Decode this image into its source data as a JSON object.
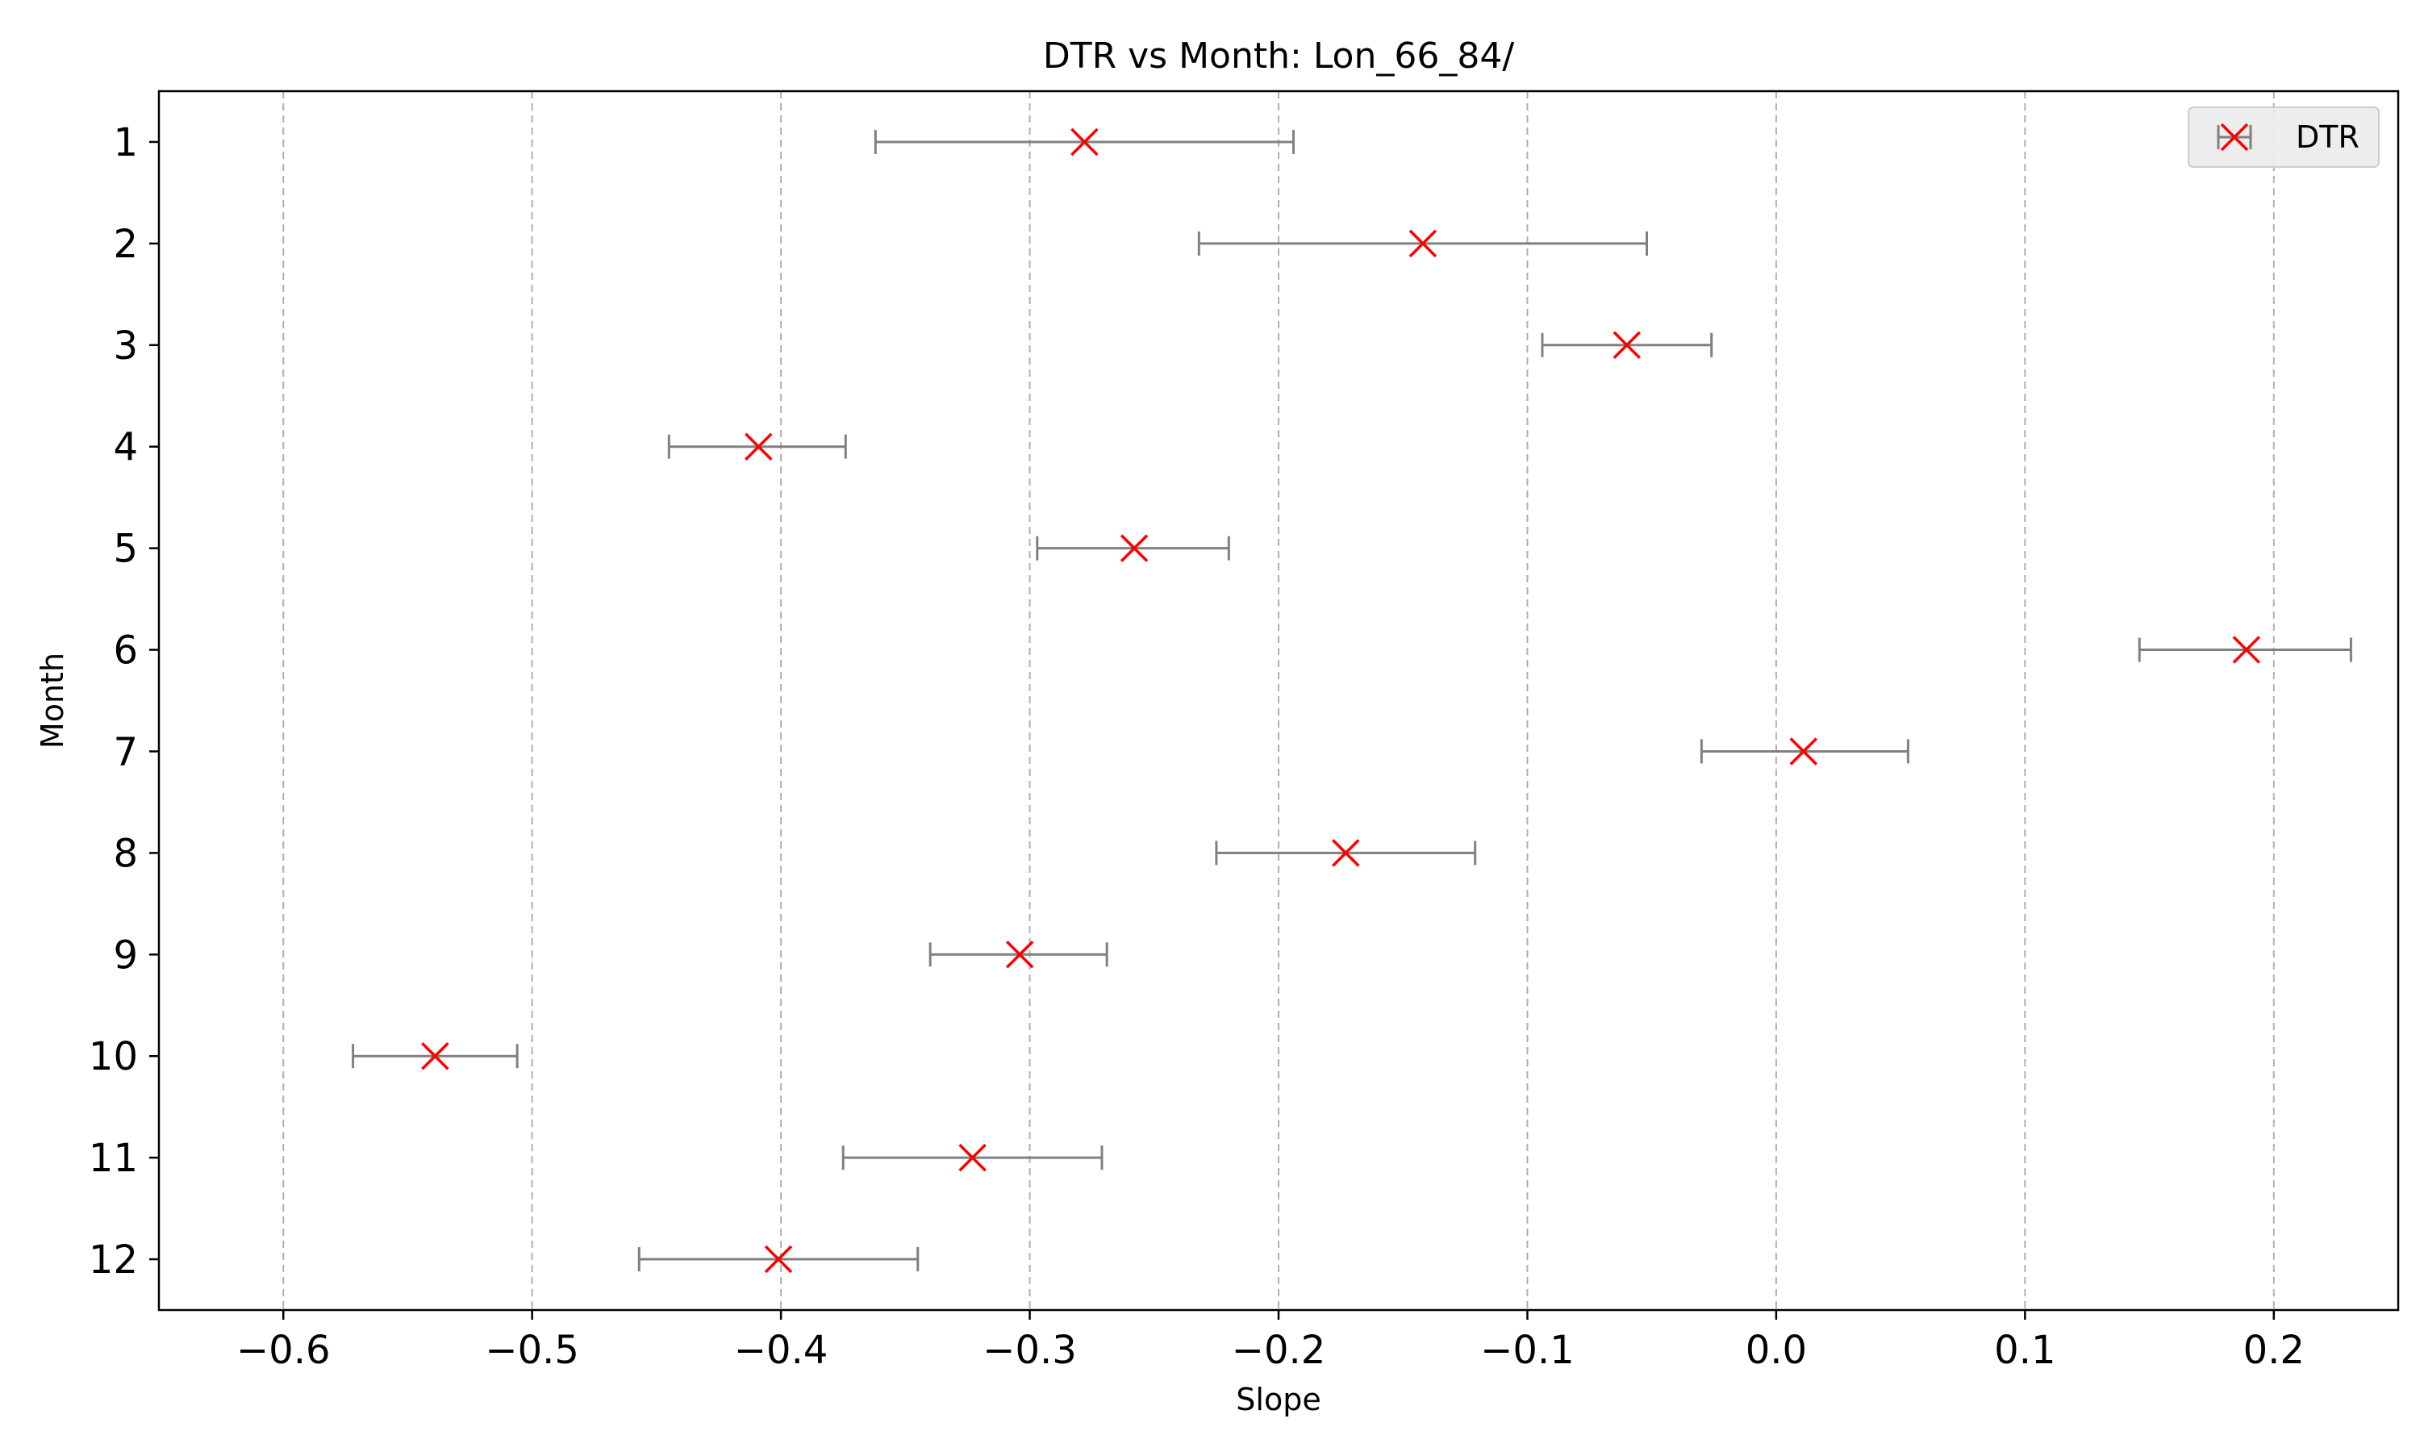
{
  "chart_data": {
    "type": "scatter",
    "title": "DTR vs Month: Lon_66_84/",
    "xlabel": "Slope",
    "ylabel": "Month",
    "xlim": [
      -0.65,
      0.25
    ],
    "ylim": [
      0.5,
      12.5
    ],
    "y_inverted": true,
    "x_ticks": [
      -0.6,
      -0.5,
      -0.4,
      -0.3,
      -0.2,
      -0.1,
      0.0,
      0.1,
      0.2
    ],
    "x_tick_labels": [
      "−0.6",
      "−0.5",
      "−0.4",
      "−0.3",
      "−0.2",
      "−0.1",
      "0.0",
      "0.1",
      "0.2"
    ],
    "y_ticks": [
      1,
      2,
      3,
      4,
      5,
      6,
      7,
      8,
      9,
      10,
      11,
      12
    ],
    "y_tick_labels": [
      "1",
      "2",
      "3",
      "4",
      "5",
      "6",
      "7",
      "8",
      "9",
      "10",
      "11",
      "12"
    ],
    "grid": "vertical dashed",
    "legend_position": "upper right",
    "series": [
      {
        "name": "DTR",
        "marker": "x",
        "color": "#ff0000",
        "errorbar_color": "#808080",
        "points": [
          {
            "month": 1,
            "slope": -0.278,
            "low": -0.362,
            "high": -0.194
          },
          {
            "month": 2,
            "slope": -0.142,
            "low": -0.232,
            "high": -0.052
          },
          {
            "month": 3,
            "slope": -0.06,
            "low": -0.094,
            "high": -0.026
          },
          {
            "month": 4,
            "slope": -0.409,
            "low": -0.445,
            "high": -0.374
          },
          {
            "month": 5,
            "slope": -0.258,
            "low": -0.297,
            "high": -0.22
          },
          {
            "month": 6,
            "slope": 0.189,
            "low": 0.146,
            "high": 0.231
          },
          {
            "month": 7,
            "slope": 0.011,
            "low": -0.03,
            "high": 0.053
          },
          {
            "month": 8,
            "slope": -0.173,
            "low": -0.225,
            "high": -0.121
          },
          {
            "month": 9,
            "slope": -0.304,
            "low": -0.34,
            "high": -0.269
          },
          {
            "month": 10,
            "slope": -0.539,
            "low": -0.572,
            "high": -0.506
          },
          {
            "month": 11,
            "slope": -0.323,
            "low": -0.375,
            "high": -0.271
          },
          {
            "month": 12,
            "slope": -0.401,
            "low": -0.457,
            "high": -0.345
          }
        ]
      }
    ]
  }
}
